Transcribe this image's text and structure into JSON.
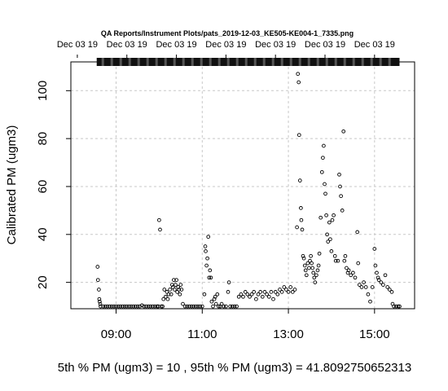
{
  "chart_data": {
    "type": "scatter",
    "title": "QA Reports/Instrument Plots/pats_2019-12-03_KE505-KE004-1_7335.png",
    "ylabel": "Calibrated PM (ugm3)",
    "xlabel": "",
    "footer": "5th % PM (ugm3) =  10 , 95th % PM (ugm3)  =  41.8092750652313",
    "x_ticks": [
      {
        "x": 9,
        "label": "09:00"
      },
      {
        "x": 11,
        "label": "11:00"
      },
      {
        "x": 13,
        "label": "13:00"
      },
      {
        "x": 15,
        "label": "15:00"
      }
    ],
    "top_ticks": [
      {
        "x": 8.1,
        "label": "Dec 03 19"
      },
      {
        "x": 9.25,
        "label": "Dec 03 19"
      },
      {
        "x": 10.4,
        "label": "Dec 03 19"
      },
      {
        "x": 11.55,
        "label": "Dec 03 19"
      },
      {
        "x": 12.7,
        "label": "Dec 03 19"
      },
      {
        "x": 13.85,
        "label": "Dec 03 19"
      },
      {
        "x": 15.0,
        "label": "Dec 03 19"
      }
    ],
    "y_ticks": [
      20,
      40,
      60,
      80,
      100
    ],
    "xlim": [
      7.95,
      15.93
    ],
    "ylim": [
      9,
      112
    ],
    "grid": true,
    "top_bar_range": [
      8.55,
      15.58
    ],
    "marker": "open-circle",
    "x_unit": "hour of day (Dec 03 2019)",
    "series": [
      {
        "values": [
          [
            8.57,
            26.5
          ],
          [
            8.58,
            21
          ],
          [
            8.6,
            17
          ],
          [
            8.61,
            13
          ],
          [
            8.62,
            12
          ],
          [
            8.63,
            11
          ],
          [
            8.64,
            10
          ],
          [
            8.7,
            10
          ],
          [
            8.75,
            10
          ],
          [
            8.8,
            10
          ],
          [
            8.85,
            10
          ],
          [
            8.9,
            10
          ],
          [
            8.95,
            10
          ],
          [
            9.0,
            10
          ],
          [
            9.05,
            10
          ],
          [
            9.1,
            10
          ],
          [
            9.15,
            10
          ],
          [
            9.2,
            10
          ],
          [
            9.25,
            10
          ],
          [
            9.3,
            10
          ],
          [
            9.35,
            10
          ],
          [
            9.4,
            10
          ],
          [
            9.45,
            10
          ],
          [
            9.5,
            10
          ],
          [
            9.55,
            10
          ],
          [
            9.6,
            10.4
          ],
          [
            9.65,
            10
          ],
          [
            9.7,
            10
          ],
          [
            9.75,
            10
          ],
          [
            9.8,
            10
          ],
          [
            9.85,
            10
          ],
          [
            9.9,
            10
          ],
          [
            9.95,
            10
          ],
          [
            9.98,
            10
          ],
          [
            10.0,
            46
          ],
          [
            10.02,
            42
          ],
          [
            10.05,
            10
          ],
          [
            10.08,
            10
          ],
          [
            10.1,
            13
          ],
          [
            10.12,
            17
          ],
          [
            10.15,
            14
          ],
          [
            10.18,
            16
          ],
          [
            10.2,
            13
          ],
          [
            10.22,
            15
          ],
          [
            10.25,
            17
          ],
          [
            10.28,
            15
          ],
          [
            10.3,
            19
          ],
          [
            10.32,
            18
          ],
          [
            10.34,
            21
          ],
          [
            10.36,
            17
          ],
          [
            10.38,
            19
          ],
          [
            10.4,
            21
          ],
          [
            10.42,
            16
          ],
          [
            10.44,
            18
          ],
          [
            10.46,
            17
          ],
          [
            10.48,
            15
          ],
          [
            10.5,
            19
          ],
          [
            10.52,
            17
          ],
          [
            10.55,
            11
          ],
          [
            10.6,
            10
          ],
          [
            10.65,
            10
          ],
          [
            10.7,
            10
          ],
          [
            10.75,
            10
          ],
          [
            10.8,
            10
          ],
          [
            10.85,
            10
          ],
          [
            10.9,
            10
          ],
          [
            10.95,
            10
          ],
          [
            11.0,
            10
          ],
          [
            11.05,
            15
          ],
          [
            11.07,
            35
          ],
          [
            11.08,
            33
          ],
          [
            11.1,
            27
          ],
          [
            11.12,
            30
          ],
          [
            11.14,
            39
          ],
          [
            11.16,
            22
          ],
          [
            11.18,
            25
          ],
          [
            11.2,
            22
          ],
          [
            11.22,
            12
          ],
          [
            11.25,
            10
          ],
          [
            11.28,
            13
          ],
          [
            11.3,
            14
          ],
          [
            11.32,
            11
          ],
          [
            11.35,
            15
          ],
          [
            11.38,
            10
          ],
          [
            11.42,
            10
          ],
          [
            11.45,
            11
          ],
          [
            11.5,
            10
          ],
          [
            11.55,
            10
          ],
          [
            11.6,
            16
          ],
          [
            11.62,
            20
          ],
          [
            11.65,
            10
          ],
          [
            11.7,
            10
          ],
          [
            11.75,
            10
          ],
          [
            11.8,
            10
          ],
          [
            11.85,
            14
          ],
          [
            11.9,
            15
          ],
          [
            11.95,
            14
          ],
          [
            12.0,
            16
          ],
          [
            12.05,
            15
          ],
          [
            12.1,
            14
          ],
          [
            12.15,
            15
          ],
          [
            12.2,
            16
          ],
          [
            12.25,
            13
          ],
          [
            12.3,
            15
          ],
          [
            12.35,
            16
          ],
          [
            12.4,
            14
          ],
          [
            12.45,
            16
          ],
          [
            12.5,
            15
          ],
          [
            12.55,
            14
          ],
          [
            12.6,
            16
          ],
          [
            12.65,
            13
          ],
          [
            12.7,
            16
          ],
          [
            12.75,
            15
          ],
          [
            12.8,
            17
          ],
          [
            12.85,
            16
          ],
          [
            12.9,
            18
          ],
          [
            12.95,
            17
          ],
          [
            13.0,
            16
          ],
          [
            13.05,
            18
          ],
          [
            13.1,
            16
          ],
          [
            13.15,
            17
          ],
          [
            13.2,
            43
          ],
          [
            13.22,
            107
          ],
          [
            13.24,
            103.5
          ],
          [
            13.25,
            81.5
          ],
          [
            13.27,
            62.5
          ],
          [
            13.29,
            51
          ],
          [
            13.3,
            46
          ],
          [
            13.32,
            42
          ],
          [
            13.34,
            31
          ],
          [
            13.36,
            30
          ],
          [
            13.38,
            27
          ],
          [
            13.4,
            25
          ],
          [
            13.42,
            23
          ],
          [
            13.45,
            28
          ],
          [
            13.48,
            26
          ],
          [
            13.5,
            29
          ],
          [
            13.52,
            31
          ],
          [
            13.54,
            28
          ],
          [
            13.56,
            26
          ],
          [
            13.58,
            24
          ],
          [
            13.6,
            22
          ],
          [
            13.62,
            20
          ],
          [
            13.65,
            23
          ],
          [
            13.68,
            25
          ],
          [
            13.7,
            27
          ],
          [
            13.72,
            32
          ],
          [
            13.75,
            47
          ],
          [
            13.78,
            66
          ],
          [
            13.8,
            72
          ],
          [
            13.82,
            77
          ],
          [
            13.84,
            61
          ],
          [
            13.86,
            57
          ],
          [
            13.88,
            48
          ],
          [
            13.9,
            40
          ],
          [
            13.92,
            37
          ],
          [
            13.95,
            45
          ],
          [
            13.97,
            38
          ],
          [
            14.0,
            33
          ],
          [
            14.02,
            46
          ],
          [
            14.05,
            48
          ],
          [
            14.08,
            31
          ],
          [
            14.1,
            29
          ],
          [
            14.15,
            29
          ],
          [
            14.18,
            65
          ],
          [
            14.2,
            60
          ],
          [
            14.22,
            56
          ],
          [
            14.25,
            50
          ],
          [
            14.28,
            83
          ],
          [
            14.3,
            29
          ],
          [
            14.32,
            31
          ],
          [
            14.35,
            26
          ],
          [
            14.38,
            24
          ],
          [
            14.4,
            25
          ],
          [
            14.45,
            23
          ],
          [
            14.5,
            24
          ],
          [
            14.55,
            22
          ],
          [
            14.6,
            41
          ],
          [
            14.62,
            28
          ],
          [
            14.65,
            19
          ],
          [
            14.7,
            18
          ],
          [
            14.75,
            20
          ],
          [
            14.8,
            18
          ],
          [
            14.85,
            15
          ],
          [
            14.9,
            12
          ],
          [
            14.95,
            18
          ],
          [
            15.0,
            34
          ],
          [
            15.02,
            27
          ],
          [
            15.05,
            24
          ],
          [
            15.08,
            22
          ],
          [
            15.1,
            21
          ],
          [
            15.15,
            20
          ],
          [
            15.2,
            19
          ],
          [
            15.25,
            23
          ],
          [
            15.3,
            18
          ],
          [
            15.35,
            17
          ],
          [
            15.4,
            16
          ],
          [
            15.42,
            11
          ],
          [
            15.45,
            10
          ],
          [
            15.5,
            10
          ],
          [
            15.55,
            10
          ],
          [
            15.58,
            10
          ]
        ]
      }
    ]
  }
}
